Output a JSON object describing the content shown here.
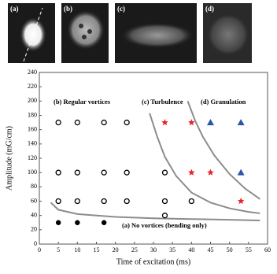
{
  "panels": [
    "(a)",
    "(b)",
    "(c)",
    "(d)"
  ],
  "chart_data": {
    "type": "scatter",
    "x_label": "Time of excitation (ms)",
    "y_label": "Amplitude (mG/cm)",
    "xlim": [
      0,
      60
    ],
    "xticks": [
      0,
      5,
      10,
      15,
      20,
      25,
      30,
      35,
      40,
      45,
      50,
      55,
      60
    ],
    "ylim": [
      0,
      240
    ],
    "yticks": [
      0,
      20,
      40,
      60,
      80,
      100,
      120,
      140,
      160,
      180,
      200,
      220,
      240
    ],
    "grid": false,
    "annotations": [
      "(b) Regular vortices",
      "(c) Turbulence",
      "(d) Granulation",
      "(a) No vortices (bending only)"
    ],
    "series": [
      {
        "marker": "filled-circle",
        "color": "#000000",
        "x": [
          5,
          10,
          17
        ],
        "y": [
          30,
          30,
          30
        ]
      },
      {
        "marker": "open-circle",
        "color": "#000000",
        "x": [
          5,
          10,
          17,
          23,
          5,
          10,
          17,
          23,
          33,
          5,
          10,
          17,
          23,
          33,
          40,
          33
        ],
        "y": [
          170,
          170,
          170,
          170,
          100,
          100,
          100,
          100,
          100,
          60,
          60,
          60,
          60,
          60,
          60,
          40
        ]
      },
      {
        "marker": "star",
        "color": "#e8242a",
        "x": [
          33,
          40,
          40,
          45,
          53
        ],
        "y": [
          170,
          170,
          100,
          100,
          60
        ]
      },
      {
        "marker": "triangle",
        "color": "#2a55a8",
        "x": [
          45,
          53,
          53
        ],
        "y": [
          170,
          170,
          100
        ]
      }
    ],
    "boundaries": [
      {
        "color": "#8c8c8c",
        "x": [
          3,
          5,
          10,
          20,
          30,
          40,
          50,
          58
        ],
        "y": [
          58,
          48,
          42,
          38,
          36,
          35,
          34,
          33
        ]
      },
      {
        "color": "#8c8c8c",
        "x": [
          29,
          31,
          33,
          36,
          40,
          45,
          50,
          55,
          58
        ],
        "y": [
          183,
          150,
          122,
          95,
          72,
          58,
          50,
          45,
          43
        ]
      },
      {
        "color": "#8c8c8c",
        "x": [
          39,
          41,
          43,
          46,
          50,
          54,
          58
        ],
        "y": [
          200,
          172,
          150,
          124,
          98,
          78,
          63
        ]
      }
    ]
  }
}
